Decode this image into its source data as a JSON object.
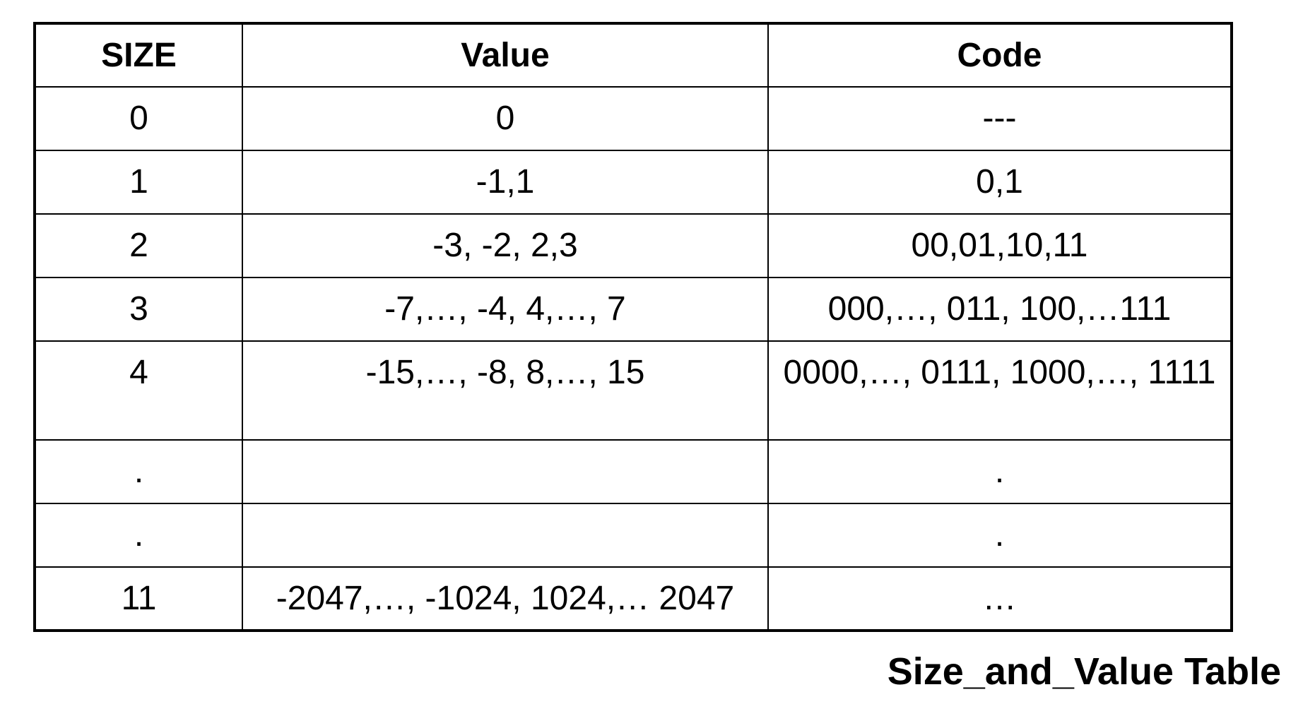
{
  "table": {
    "header": [
      "SIZE",
      "Value",
      "Code"
    ],
    "rows": [
      [
        "0",
        "0",
        "---"
      ],
      [
        "1",
        "-1,1",
        "0,1"
      ],
      [
        "2",
        "-3, -2, 2,3",
        "00,01,10,11"
      ],
      [
        "3",
        "-7,…, -4, 4,…, 7",
        "000,…, 011, 100,…111"
      ],
      [
        "4",
        "-15,…, -8, 8,…, 15",
        "0000,…, 0111, 1000,…, 1111"
      ],
      [
        ".",
        null,
        "."
      ],
      [
        ".",
        null,
        "."
      ],
      [
        "11",
        "-2047,…, -1024, 1024,… 2047",
        "…"
      ]
    ]
  },
  "caption": "Size_and_Value Table"
}
